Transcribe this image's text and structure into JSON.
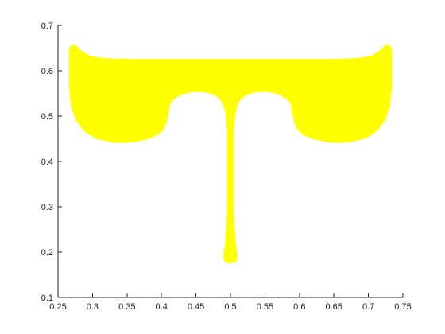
{
  "chart_data": {
    "type": "area",
    "title": "",
    "xlabel": "",
    "ylabel": "",
    "xlim": [
      0.25,
      0.75
    ],
    "ylim": [
      0.1,
      0.7
    ],
    "xticks": [
      "0.25",
      "0.3",
      "0.35",
      "0.4",
      "0.45",
      "0.5",
      "0.55",
      "0.6",
      "0.65",
      "0.7",
      "0.75"
    ],
    "yticks": [
      "0.1",
      "0.2",
      "0.3",
      "0.4",
      "0.5",
      "0.6",
      "0.7"
    ],
    "grid": false,
    "box": false,
    "colors": {
      "fill": "#ffff00",
      "axis": "#262626"
    },
    "series": [
      {
        "fill_color": "#ffff00",
        "outline": [
          [
            0.266,
            0.648
          ],
          [
            0.27,
            0.658
          ],
          [
            0.274,
            0.659
          ],
          [
            0.278,
            0.653
          ],
          [
            0.285,
            0.643
          ],
          [
            0.295,
            0.634
          ],
          [
            0.31,
            0.629
          ],
          [
            0.33,
            0.627
          ],
          [
            0.36,
            0.626
          ],
          [
            0.4,
            0.626
          ],
          [
            0.45,
            0.626
          ],
          [
            0.5,
            0.626
          ],
          [
            0.55,
            0.626
          ],
          [
            0.6,
            0.626
          ],
          [
            0.64,
            0.626
          ],
          [
            0.67,
            0.627
          ],
          [
            0.69,
            0.629
          ],
          [
            0.705,
            0.634
          ],
          [
            0.715,
            0.643
          ],
          [
            0.722,
            0.653
          ],
          [
            0.726,
            0.659
          ],
          [
            0.73,
            0.658
          ],
          [
            0.734,
            0.648
          ],
          [
            0.734,
            0.56
          ],
          [
            0.731,
            0.52
          ],
          [
            0.724,
            0.49
          ],
          [
            0.712,
            0.466
          ],
          [
            0.695,
            0.45
          ],
          [
            0.67,
            0.442
          ],
          [
            0.655,
            0.441
          ],
          [
            0.64,
            0.443
          ],
          [
            0.62,
            0.449
          ],
          [
            0.605,
            0.459
          ],
          [
            0.597,
            0.47
          ],
          [
            0.593,
            0.484
          ],
          [
            0.59,
            0.502
          ],
          [
            0.588,
            0.525
          ],
          [
            0.582,
            0.537
          ],
          [
            0.57,
            0.548
          ],
          [
            0.555,
            0.553
          ],
          [
            0.54,
            0.553
          ],
          [
            0.527,
            0.549
          ],
          [
            0.518,
            0.541
          ],
          [
            0.511,
            0.528
          ],
          [
            0.507,
            0.505
          ],
          [
            0.505,
            0.47
          ],
          [
            0.505,
            0.42
          ],
          [
            0.505,
            0.35
          ],
          [
            0.505,
            0.29
          ],
          [
            0.506,
            0.25
          ],
          [
            0.508,
            0.215
          ],
          [
            0.51,
            0.195
          ],
          [
            0.51,
            0.183
          ],
          [
            0.506,
            0.177
          ],
          [
            0.5,
            0.175
          ],
          [
            0.494,
            0.177
          ],
          [
            0.49,
            0.183
          ],
          [
            0.49,
            0.195
          ],
          [
            0.492,
            0.215
          ],
          [
            0.494,
            0.25
          ],
          [
            0.495,
            0.29
          ],
          [
            0.495,
            0.35
          ],
          [
            0.495,
            0.42
          ],
          [
            0.495,
            0.47
          ],
          [
            0.493,
            0.505
          ],
          [
            0.489,
            0.528
          ],
          [
            0.482,
            0.541
          ],
          [
            0.473,
            0.549
          ],
          [
            0.46,
            0.553
          ],
          [
            0.445,
            0.553
          ],
          [
            0.43,
            0.548
          ],
          [
            0.418,
            0.537
          ],
          [
            0.412,
            0.525
          ],
          [
            0.41,
            0.502
          ],
          [
            0.407,
            0.484
          ],
          [
            0.403,
            0.47
          ],
          [
            0.395,
            0.459
          ],
          [
            0.38,
            0.449
          ],
          [
            0.36,
            0.443
          ],
          [
            0.345,
            0.441
          ],
          [
            0.33,
            0.442
          ],
          [
            0.305,
            0.45
          ],
          [
            0.288,
            0.466
          ],
          [
            0.276,
            0.49
          ],
          [
            0.269,
            0.52
          ],
          [
            0.266,
            0.56
          ]
        ]
      }
    ]
  }
}
